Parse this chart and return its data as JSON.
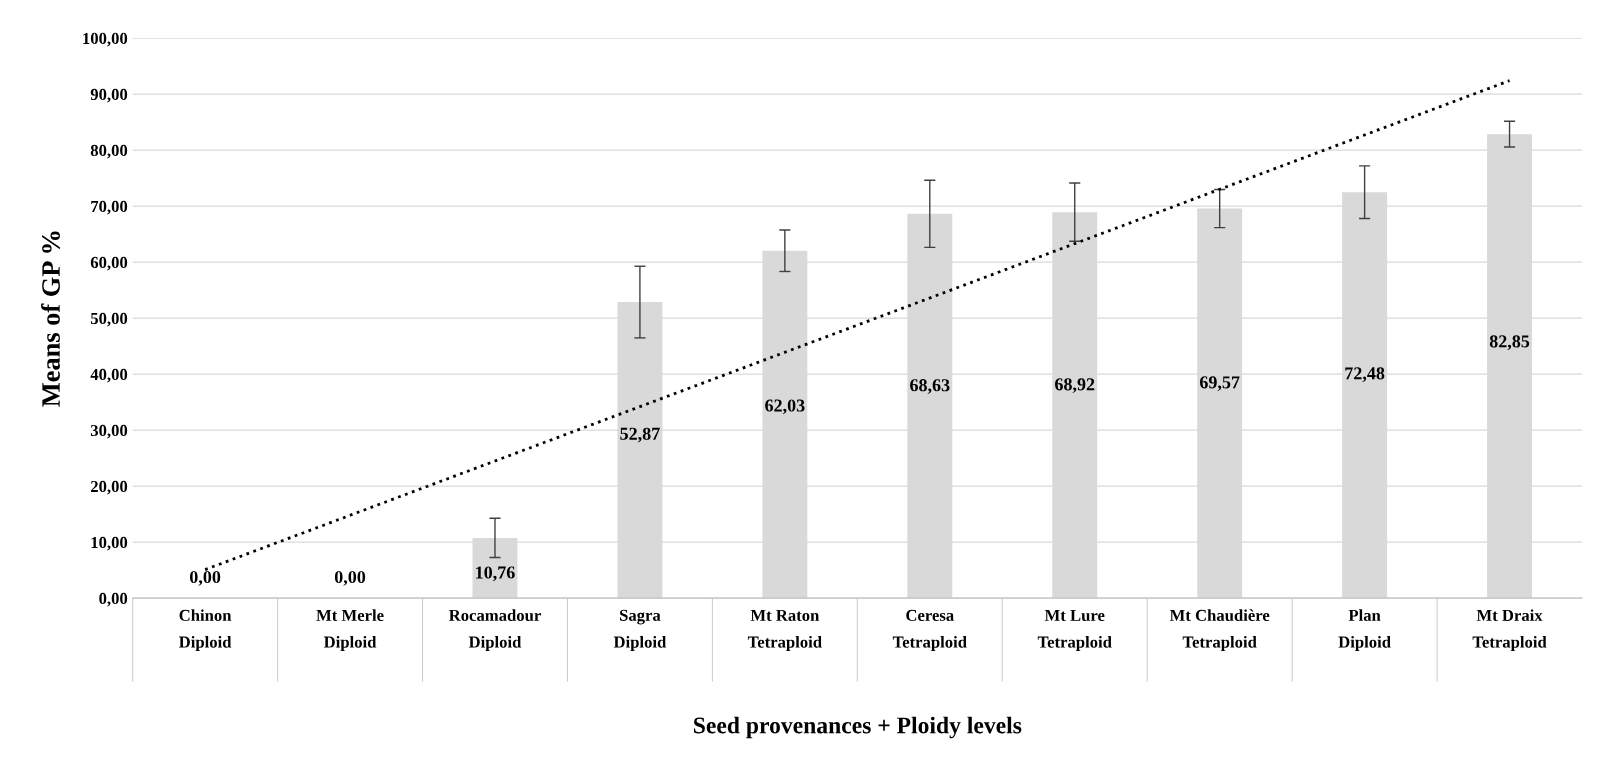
{
  "chart_data": {
    "type": "bar",
    "xlabel": "Seed provenances + Ploidy levels",
    "ylabel": "Means of GP %",
    "categories": [
      "Chinon\nDiploid",
      "Mt Merle\nDiploid",
      "Rocamadour\nDiploid",
      "Sagra\nDiploid",
      "Mt Raton\nTetraploid",
      "Ceresa\nTetraploid",
      "Mt Lure\nTetraploid",
      "Mt Chaudière\nTetraploid",
      "Plan\nDiploid",
      "Mt Draix\nTetraploid"
    ],
    "series": [
      {
        "color": "#d9d9d9",
        "values": [
          0,
          0,
          10.76,
          52.87,
          62.03,
          68.63,
          68.92,
          69.57,
          72.48,
          82.85
        ],
        "errors": [
          null,
          null,
          3.5,
          6.4,
          3.7,
          6.0,
          5.2,
          3.4,
          4.7,
          2.3
        ],
        "value_labels": [
          "0,00",
          "0,00",
          "10,76",
          "52,87",
          "62,03",
          "68,63",
          "68,92",
          "69,57",
          "72,48",
          "82,85"
        ]
      },
      {
        "type": "line",
        "color": "#000000",
        "line_style": "dotted",
        "values": [
          5.1,
          14.8,
          24.5,
          34.2,
          43.9,
          53.6,
          63.3,
          73.0,
          82.7,
          92.4
        ]
      }
    ],
    "ylim": [
      0,
      100
    ],
    "yticks": [
      {
        "value": 0,
        "label": "0,00"
      },
      {
        "value": 10,
        "label": "10,00"
      },
      {
        "value": 20,
        "label": "20,00"
      },
      {
        "value": 30,
        "label": "30,00"
      },
      {
        "value": 40,
        "label": "40,00"
      },
      {
        "value": 50,
        "label": "50,00"
      },
      {
        "value": 60,
        "label": "60,00"
      },
      {
        "value": 70,
        "label": "70,00"
      },
      {
        "value": 80,
        "label": "80,00"
      },
      {
        "value": 90,
        "label": "90,00"
      },
      {
        "value": 100,
        "label": "100,00"
      }
    ],
    "grid": "y",
    "legend": false
  }
}
